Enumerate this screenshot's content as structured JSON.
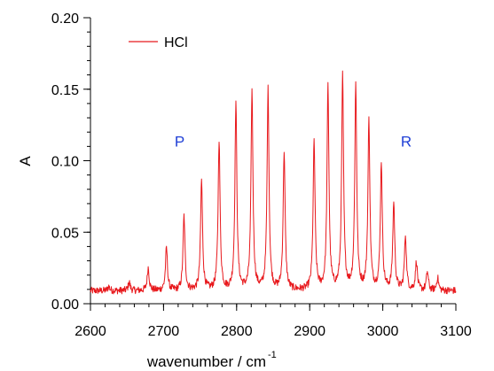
{
  "chart_data": {
    "type": "line",
    "title": "",
    "xlabel": "wavenumber / cm",
    "xlabel_superscript": "-1",
    "ylabel": "A",
    "xlim": [
      2600,
      3100
    ],
    "ylim": [
      0,
      0.2
    ],
    "xticks": [
      "2600",
      "2700",
      "2800",
      "2900",
      "3000",
      "3100"
    ],
    "yticks": [
      "0.00",
      "0.05",
      "0.10",
      "0.15",
      "0.20"
    ],
    "grid": false,
    "legend_position": "top-left",
    "series": [
      {
        "name": "HCl",
        "color": "#e8191d",
        "baseline": 0.009,
        "peaks": [
          {
            "x": 2625,
            "y": 0.012
          },
          {
            "x": 2653,
            "y": 0.015
          },
          {
            "x": 2679,
            "y": 0.025
          },
          {
            "x": 2704,
            "y": 0.039
          },
          {
            "x": 2728,
            "y": 0.061
          },
          {
            "x": 2752,
            "y": 0.086
          },
          {
            "x": 2776,
            "y": 0.114
          },
          {
            "x": 2799,
            "y": 0.14
          },
          {
            "x": 2821,
            "y": 0.148
          },
          {
            "x": 2843,
            "y": 0.149
          },
          {
            "x": 2865,
            "y": 0.106
          },
          {
            "x": 2906,
            "y": 0.113
          },
          {
            "x": 2925,
            "y": 0.151
          },
          {
            "x": 2945,
            "y": 0.158
          },
          {
            "x": 2963,
            "y": 0.152
          },
          {
            "x": 2981,
            "y": 0.127
          },
          {
            "x": 2998,
            "y": 0.098
          },
          {
            "x": 3015,
            "y": 0.07
          },
          {
            "x": 3031,
            "y": 0.047
          },
          {
            "x": 3046,
            "y": 0.029
          },
          {
            "x": 3061,
            "y": 0.022
          },
          {
            "x": 3075,
            "y": 0.018
          }
        ]
      }
    ],
    "annotations": [
      {
        "text": "P",
        "x": 2722,
        "y": 0.11
      },
      {
        "text": "R",
        "x": 3032,
        "y": 0.11
      }
    ]
  }
}
